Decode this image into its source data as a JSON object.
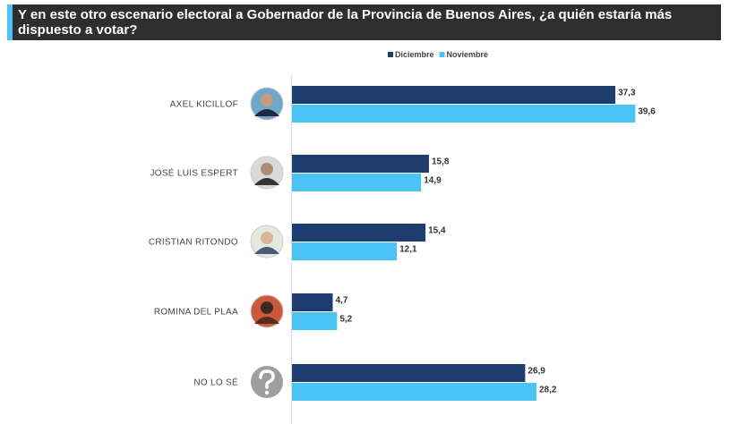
{
  "chart_data": {
    "type": "bar",
    "orientation": "horizontal",
    "title": "Y en este otro escenario electoral a Gobernador de la Provincia de Buenos Aires, ¿a quién estaría más dispuesto a votar?",
    "categories": [
      "AXEL KICILLOF",
      "JOSÉ LUIS ESPERT",
      "CRISTIAN RITONDO",
      "ROMINA DEL PLAA",
      "NO LO SÉ"
    ],
    "series": [
      {
        "name": "Diciembre",
        "color": "#1f3c6e",
        "values": [
          37.3,
          15.8,
          15.4,
          4.7,
          26.9
        ],
        "value_labels": [
          "37,3",
          "15,8",
          "15,4",
          "4,7",
          "26,9"
        ]
      },
      {
        "name": "Noviembre",
        "color": "#4cc3f5",
        "values": [
          39.6,
          14.9,
          12.1,
          5.2,
          28.2
        ],
        "value_labels": [
          "39,6",
          "14,9",
          "12,1",
          "5,2",
          "28,2"
        ]
      }
    ],
    "legend": "top"
  }
}
